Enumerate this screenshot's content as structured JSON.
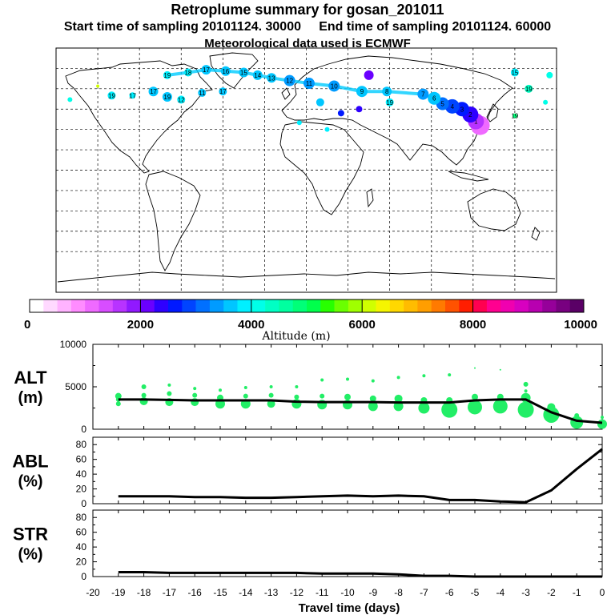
{
  "header": {
    "title": "Retroplume summary for gosan_201011",
    "start_label": "Start time of sampling 20101124. 30000",
    "end_label": "End time of sampling 20101124. 60000",
    "met_label": "Meteorological data used is ECMWF"
  },
  "colorbar": {
    "ticks": [
      "0",
      "2000",
      "4000",
      "6000",
      "8000",
      "10000"
    ],
    "label": "Altitude (m)",
    "colors": [
      "#ffffff",
      "#ffd9ff",
      "#ffb3ff",
      "#ff8cff",
      "#ef6aff",
      "#d84dff",
      "#b833ff",
      "#9119ff",
      "#6a00ff",
      "#2e00ff",
      "#0019ff",
      "#0044ff",
      "#0070ff",
      "#009bff",
      "#00c6ff",
      "#00f0ff",
      "#00ffe8",
      "#00ffc4",
      "#00ffa0",
      "#00ff78",
      "#00ff4c",
      "#28ff00",
      "#6aff00",
      "#a0ff00",
      "#d0ff00",
      "#f5f500",
      "#ffd800",
      "#ffbc00",
      "#ff9e00",
      "#ff7a00",
      "#ff5200",
      "#ff1e00",
      "#ff0050",
      "#ff0090",
      "#f000b0",
      "#d800c0",
      "#b800b0",
      "#96009a",
      "#780080",
      "#5a0066"
    ]
  },
  "map": {
    "markers": [
      {
        "lon": 125,
        "lat": 33,
        "alt": 1200,
        "r": 12,
        "label": ""
      },
      {
        "lon": 122,
        "lat": 36,
        "alt": 1500,
        "r": 10,
        "label": "1"
      },
      {
        "lon": 118,
        "lat": 41,
        "alt": 2400,
        "r": 10,
        "label": "2"
      },
      {
        "lon": 112,
        "lat": 45,
        "alt": 2600,
        "r": 9,
        "label": "3"
      },
      {
        "lon": 105,
        "lat": 47,
        "alt": 2900,
        "r": 9,
        "label": "4"
      },
      {
        "lon": 98,
        "lat": 49,
        "alt": 3200,
        "r": 8,
        "label": "5"
      },
      {
        "lon": 92,
        "lat": 53,
        "alt": 3600,
        "r": 8,
        "label": "6"
      },
      {
        "lon": 84,
        "lat": 56,
        "alt": 3300,
        "r": 7,
        "label": "7"
      },
      {
        "lon": 58,
        "lat": 58,
        "alt": 3600,
        "r": 6,
        "label": "8"
      },
      {
        "lon": 40,
        "lat": 58,
        "alt": 3500,
        "r": 7,
        "label": "9"
      },
      {
        "lon": 20,
        "lat": 62,
        "alt": 3400,
        "r": 7,
        "label": "10"
      },
      {
        "lon": 2,
        "lat": 64,
        "alt": 3400,
        "r": 7,
        "label": "11"
      },
      {
        "lon": -12,
        "lat": 66,
        "alt": 3400,
        "r": 7,
        "label": "12"
      },
      {
        "lon": -25,
        "lat": 68,
        "alt": 3500,
        "r": 6,
        "label": "13"
      },
      {
        "lon": -35,
        "lat": 70,
        "alt": 3500,
        "r": 6,
        "label": "14"
      },
      {
        "lon": -45,
        "lat": 72,
        "alt": 3600,
        "r": 6,
        "label": "15"
      },
      {
        "lon": -58,
        "lat": 73,
        "alt": 3600,
        "r": 6,
        "label": "16"
      },
      {
        "lon": -72,
        "lat": 74,
        "alt": 3700,
        "r": 6,
        "label": "17"
      },
      {
        "lon": -85,
        "lat": 72,
        "alt": 3800,
        "r": 5,
        "label": "18"
      },
      {
        "lon": -100,
        "lat": 70,
        "alt": 3900,
        "r": 5,
        "label": "19"
      },
      {
        "lon": 45,
        "lat": 70,
        "alt": 2200,
        "r": 6,
        "label": ""
      },
      {
        "lon": 38,
        "lat": 45,
        "alt": 2400,
        "r": 4,
        "label": ""
      },
      {
        "lon": 25,
        "lat": 42,
        "alt": 2500,
        "r": 4,
        "label": ""
      },
      {
        "lon": 15,
        "lat": 30,
        "alt": 3900,
        "r": 3,
        "label": ""
      },
      {
        "lon": -5,
        "lat": 35,
        "alt": 3800,
        "r": 3,
        "label": ""
      },
      {
        "lon": 60,
        "lat": 50,
        "alt": 3900,
        "r": 5,
        "label": "19"
      },
      {
        "lon": -140,
        "lat": 55,
        "alt": 3900,
        "r": 5,
        "label": "19"
      },
      {
        "lon": -125,
        "lat": 55,
        "alt": 3900,
        "r": 4,
        "label": "17"
      },
      {
        "lon": 160,
        "lat": 60,
        "alt": 4300,
        "r": 5,
        "label": "19"
      },
      {
        "lon": 150,
        "lat": 40,
        "alt": 4800,
        "r": 3,
        "label": "19"
      },
      {
        "lon": 172,
        "lat": 50,
        "alt": 4200,
        "r": 3,
        "label": ""
      },
      {
        "lon": -170,
        "lat": 52,
        "alt": 4200,
        "r": 3,
        "label": ""
      },
      {
        "lon": -150,
        "lat": 62,
        "alt": 6000,
        "r": 2,
        "label": ""
      },
      {
        "lon": -110,
        "lat": 58,
        "alt": 3600,
        "r": 6,
        "label": "17"
      },
      {
        "lon": -100,
        "lat": 54,
        "alt": 3700,
        "r": 6,
        "label": "19"
      },
      {
        "lon": -75,
        "lat": 57,
        "alt": 3500,
        "r": 5,
        "label": "11"
      },
      {
        "lon": -60,
        "lat": 58,
        "alt": 3600,
        "r": 5,
        "label": "17"
      },
      {
        "lon": -90,
        "lat": 52,
        "alt": 3800,
        "r": 5,
        "label": "12"
      },
      {
        "lon": 10,
        "lat": 50,
        "alt": 3700,
        "r": 5,
        "label": ""
      },
      {
        "lon": 150,
        "lat": 72,
        "alt": 3800,
        "r": 5,
        "label": "15"
      },
      {
        "lon": 175,
        "lat": 70,
        "alt": 4000,
        "r": 4,
        "label": ""
      }
    ]
  },
  "panels": {
    "alt": {
      "label_line1": "ALT",
      "label_line2": "(m)",
      "ticks": [
        "0",
        "5000",
        "10000"
      ]
    },
    "abl": {
      "label_line1": "ABL",
      "label_line2": "(%)",
      "ticks": [
        "0",
        "20",
        "40",
        "60",
        "80"
      ]
    },
    "str": {
      "label_line1": "STR",
      "label_line2": "(%)",
      "ticks": [
        "0",
        "20",
        "40",
        "60",
        "80"
      ]
    }
  },
  "chart_data": {
    "type": "line",
    "title": "Retroplume summary for gosan_201011",
    "xlabel": "Travel time (days)",
    "xlim": [
      -20,
      0
    ],
    "x_ticks": [
      "-20",
      "-19",
      "-18",
      "-17",
      "-16",
      "-15",
      "-14",
      "-13",
      "-12",
      "-11",
      "-10",
      "-9",
      "-8",
      "-7",
      "-6",
      "-5",
      "-4",
      "-3",
      "-2",
      "-1",
      "0"
    ],
    "x": [
      -19,
      -18,
      -17,
      -16,
      -15,
      -14,
      -13,
      -12,
      -11,
      -10,
      -9,
      -8,
      -7,
      -6,
      -5,
      -4,
      -3,
      -2,
      -1,
      0
    ],
    "series": [
      {
        "name": "ALT",
        "unit": "m",
        "ylim": [
          0,
          10000
        ],
        "values": [
          3500,
          3500,
          3450,
          3400,
          3400,
          3400,
          3400,
          3250,
          3200,
          3200,
          3200,
          3150,
          3150,
          3150,
          3400,
          3500,
          3500,
          2000,
          1000,
          750
        ]
      },
      {
        "name": "ABL",
        "unit": "%",
        "ylim": [
          0,
          90
        ],
        "values": [
          10,
          10,
          10,
          9,
          9,
          8,
          8,
          9,
          10,
          11,
          10,
          11,
          10,
          5,
          5,
          3,
          2,
          18,
          47,
          74
        ]
      },
      {
        "name": "STR",
        "unit": "%",
        "ylim": [
          0,
          90
        ],
        "values": [
          6,
          6,
          5,
          5,
          5,
          5,
          5,
          5,
          4,
          4,
          4,
          3,
          1,
          1,
          0,
          0,
          0,
          0,
          0,
          0
        ]
      }
    ],
    "alt_bubbles": [
      {
        "x": -19,
        "alt": 3500,
        "r": 3
      },
      {
        "x": -19,
        "alt": 3900,
        "r": 4
      },
      {
        "x": -19,
        "alt": 3000,
        "r": 3
      },
      {
        "x": -18,
        "alt": 3300,
        "r": 5
      },
      {
        "x": -18,
        "alt": 4000,
        "r": 3
      },
      {
        "x": -18,
        "alt": 5000,
        "r": 3
      },
      {
        "x": -17,
        "alt": 3200,
        "r": 5
      },
      {
        "x": -17,
        "alt": 4200,
        "r": 3
      },
      {
        "x": -17,
        "alt": 5200,
        "r": 2
      },
      {
        "x": -16,
        "alt": 3200,
        "r": 5
      },
      {
        "x": -16,
        "alt": 4000,
        "r": 3
      },
      {
        "x": -16,
        "alt": 4800,
        "r": 2
      },
      {
        "x": -15,
        "alt": 3000,
        "r": 6
      },
      {
        "x": -15,
        "alt": 3700,
        "r": 4
      },
      {
        "x": -15,
        "alt": 4600,
        "r": 2
      },
      {
        "x": -14,
        "alt": 3000,
        "r": 6
      },
      {
        "x": -14,
        "alt": 3900,
        "r": 3
      },
      {
        "x": -14,
        "alt": 4900,
        "r": 2
      },
      {
        "x": -13,
        "alt": 3000,
        "r": 5
      },
      {
        "x": -13,
        "alt": 4000,
        "r": 3
      },
      {
        "x": -13,
        "alt": 5000,
        "r": 2
      },
      {
        "x": -12,
        "alt": 3000,
        "r": 6
      },
      {
        "x": -12,
        "alt": 3800,
        "r": 3
      },
      {
        "x": -12,
        "alt": 5000,
        "r": 2
      },
      {
        "x": -11,
        "alt": 2900,
        "r": 6
      },
      {
        "x": -11,
        "alt": 3900,
        "r": 3
      },
      {
        "x": -11,
        "alt": 5800,
        "r": 2
      },
      {
        "x": -10,
        "alt": 2900,
        "r": 6
      },
      {
        "x": -10,
        "alt": 3800,
        "r": 4
      },
      {
        "x": -10,
        "alt": 5900,
        "r": 2
      },
      {
        "x": -9,
        "alt": 2700,
        "r": 6
      },
      {
        "x": -9,
        "alt": 3600,
        "r": 4
      },
      {
        "x": -9,
        "alt": 5700,
        "r": 2
      },
      {
        "x": -8,
        "alt": 2700,
        "r": 6
      },
      {
        "x": -8,
        "alt": 3600,
        "r": 5
      },
      {
        "x": -8,
        "alt": 6100,
        "r": 2
      },
      {
        "x": -7,
        "alt": 2500,
        "r": 7
      },
      {
        "x": -7,
        "alt": 3400,
        "r": 4
      },
      {
        "x": -7,
        "alt": 6300,
        "r": 2
      },
      {
        "x": -6,
        "alt": 2300,
        "r": 10
      },
      {
        "x": -6,
        "alt": 3400,
        "r": 4
      },
      {
        "x": -6,
        "alt": 6400,
        "r": 2
      },
      {
        "x": -5,
        "alt": 2600,
        "r": 9
      },
      {
        "x": -5,
        "alt": 3800,
        "r": 4
      },
      {
        "x": -5,
        "alt": 7200,
        "r": 1
      },
      {
        "x": -4,
        "alt": 2700,
        "r": 9
      },
      {
        "x": -4,
        "alt": 3800,
        "r": 4
      },
      {
        "x": -4,
        "alt": 7000,
        "r": 1
      },
      {
        "x": -3,
        "alt": 2300,
        "r": 10
      },
      {
        "x": -3,
        "alt": 3700,
        "r": 6
      },
      {
        "x": -3,
        "alt": 5300,
        "r": 3
      },
      {
        "x": -3,
        "alt": 4500,
        "r": 2
      },
      {
        "x": -2,
        "alt": 1700,
        "r": 10
      },
      {
        "x": -2,
        "alt": 2600,
        "r": 5
      },
      {
        "x": -1,
        "alt": 800,
        "r": 8
      },
      {
        "x": -1,
        "alt": 1600,
        "r": 3
      },
      {
        "x": 0,
        "alt": 600,
        "r": 6
      },
      {
        "x": 0,
        "alt": 1400,
        "r": 2
      }
    ]
  }
}
